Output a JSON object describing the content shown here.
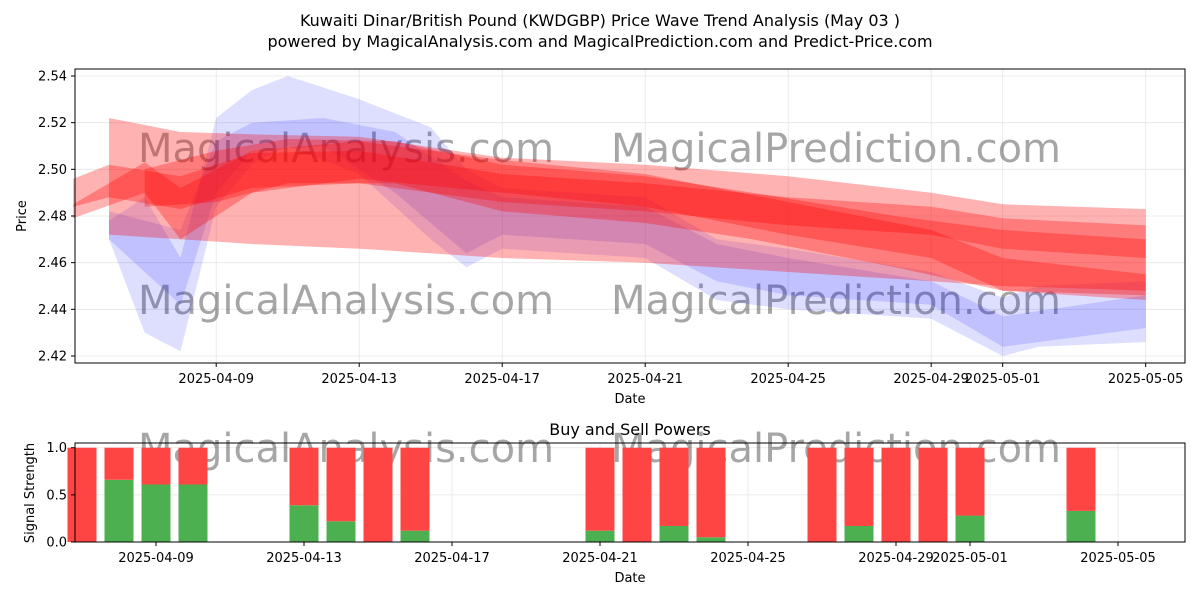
{
  "title_line1": "Kuwaiti Dinar/British Pound (KWDGBP) Price Wave Trend Analysis (May 03 )",
  "title_line2": "powered by MagicalAnalysis.com and MagicalPrediction.com and Predict-Price.com",
  "watermarks": [
    "MagicalAnalysis.com",
    "MagicalPrediction.com"
  ],
  "colors": {
    "red_band": "#ff0000",
    "blue_band": "#0000ff",
    "buy_bar": "#4caf50",
    "sell_bar": "#ff4444",
    "grid": "#e6e6e6"
  },
  "chart_data": [
    {
      "type": "area",
      "title": "",
      "xlabel": "Date",
      "ylabel": "Price",
      "x_range": [
        "2025-04-05",
        "2025-05-06"
      ],
      "ylim": [
        2.417,
        2.543
      ],
      "x_ticks": [
        "2025-04-09",
        "2025-04-13",
        "2025-04-17",
        "2025-04-21",
        "2025-04-25",
        "2025-04-29",
        "2025-05-01",
        "2025-05-05"
      ],
      "y_ticks": [
        2.42,
        2.44,
        2.46,
        2.48,
        2.5,
        2.52,
        2.54
      ],
      "grid": true,
      "series": [
        {
          "color": "#ff0000",
          "bands": [
            {
              "x": [
                "2025-04-05",
                "2025-04-06",
                "2025-04-08",
                "2025-04-10",
                "2025-04-13",
                "2025-04-17",
                "2025-04-21",
                "2025-04-25",
                "2025-04-29",
                "2025-05-01",
                "2025-05-05"
              ],
              "upper": [
                2.496,
                2.502,
                2.497,
                2.507,
                2.508,
                2.498,
                2.494,
                2.488,
                2.484,
                2.479,
                2.476
              ],
              "lower": [
                2.484,
                2.488,
                2.483,
                2.492,
                2.494,
                2.486,
                2.482,
                2.476,
                2.472,
                2.466,
                2.462
              ]
            },
            {
              "x": [
                "2025-04-06",
                "2025-04-08",
                "2025-04-10",
                "2025-04-13",
                "2025-04-17",
                "2025-04-21",
                "2025-04-25",
                "2025-04-29",
                "2025-05-01",
                "2025-05-05"
              ],
              "upper": [
                2.522,
                2.516,
                2.515,
                2.514,
                2.505,
                2.502,
                2.497,
                2.49,
                2.485,
                2.483
              ],
              "lower": [
                2.472,
                2.47,
                2.468,
                2.466,
                2.462,
                2.46,
                2.456,
                2.452,
                2.45,
                2.448
              ]
            },
            {
              "x": [
                "2025-04-05",
                "2025-04-07",
                "2025-04-08",
                "2025-04-10",
                "2025-04-13",
                "2025-04-17",
                "2025-04-21",
                "2025-04-25",
                "2025-04-29",
                "2025-05-01",
                "2025-05-05"
              ],
              "upper": [
                2.485,
                2.503,
                2.492,
                2.508,
                2.512,
                2.504,
                2.498,
                2.486,
                2.474,
                2.462,
                2.455
              ],
              "lower": [
                2.479,
                2.49,
                2.47,
                2.49,
                2.496,
                2.49,
                2.484,
                2.472,
                2.462,
                2.448,
                2.444
              ]
            },
            {
              "x": [
                "2025-04-07",
                "2025-04-09",
                "2025-04-11",
                "2025-04-14",
                "2025-04-17",
                "2025-04-21",
                "2025-04-24",
                "2025-04-28",
                "2025-05-01",
                "2025-05-05"
              ],
              "upper": [
                2.5,
                2.508,
                2.513,
                2.512,
                2.502,
                2.497,
                2.49,
                2.48,
                2.474,
                2.47
              ],
              "lower": [
                2.484,
                2.486,
                2.494,
                2.494,
                2.482,
                2.477,
                2.47,
                2.458,
                2.448,
                2.446
              ]
            }
          ]
        },
        {
          "color": "#0000ff",
          "bands": [
            {
              "x": [
                "2025-04-06",
                "2025-04-07",
                "2025-04-08",
                "2025-04-09",
                "2025-04-10",
                "2025-04-11",
                "2025-04-13",
                "2025-04-15",
                "2025-04-16",
                "2025-04-17",
                "2025-04-21",
                "2025-04-23",
                "2025-04-25",
                "2025-04-29",
                "2025-05-01",
                "2025-05-02",
                "2025-05-05"
              ],
              "upper": [
                2.478,
                2.488,
                2.462,
                2.522,
                2.534,
                2.54,
                2.53,
                2.518,
                2.5,
                2.492,
                2.488,
                2.47,
                2.466,
                2.456,
                2.445,
                2.45,
                2.452
              ],
              "lower": [
                2.47,
                2.43,
                2.422,
                2.484,
                2.502,
                2.51,
                2.498,
                2.47,
                2.458,
                2.466,
                2.462,
                2.444,
                2.44,
                2.436,
                2.42,
                2.424,
                2.426
              ]
            },
            {
              "x": [
                "2025-04-06",
                "2025-04-08",
                "2025-04-09",
                "2025-04-10",
                "2025-04-12",
                "2025-04-14",
                "2025-04-16",
                "2025-04-17",
                "2025-04-21",
                "2025-04-23",
                "2025-04-25",
                "2025-04-29",
                "2025-05-01",
                "2025-05-05"
              ],
              "upper": [
                2.482,
                2.474,
                2.512,
                2.52,
                2.522,
                2.516,
                2.495,
                2.488,
                2.484,
                2.468,
                2.462,
                2.452,
                2.437,
                2.446
              ],
              "lower": [
                2.47,
                2.442,
                2.49,
                2.508,
                2.51,
                2.49,
                2.464,
                2.472,
                2.468,
                2.452,
                2.446,
                2.442,
                2.424,
                2.432
              ]
            }
          ]
        }
      ]
    },
    {
      "type": "bar",
      "title": "Buy and Sell Powers",
      "xlabel": "Date",
      "ylabel": "Signal Strength",
      "ylim": [
        0,
        1.05
      ],
      "y_ticks": [
        0.0,
        0.5,
        1.0
      ],
      "x_ticks": [
        "2025-04-09",
        "2025-04-13",
        "2025-04-17",
        "2025-04-21",
        "2025-04-25",
        "2025-04-29",
        "2025-05-01",
        "2025-05-05"
      ],
      "grid": true,
      "categories": [
        "2025-04-07",
        "2025-04-08",
        "2025-04-09",
        "2025-04-10",
        "2025-04-13",
        "2025-04-14",
        "2025-04-15",
        "2025-04-16",
        "2025-04-21",
        "2025-04-22",
        "2025-04-23",
        "2025-04-24",
        "2025-04-27",
        "2025-04-28",
        "2025-04-29",
        "2025-04-30",
        "2025-05-01",
        "2025-05-04"
      ],
      "series": [
        {
          "values": [
            0.0,
            0.66,
            0.61,
            0.61,
            0.39,
            0.22,
            0.0,
            0.12,
            0.12,
            0.0,
            0.17,
            0.05,
            0.0,
            0.17,
            0.0,
            0.0,
            0.28,
            0.33
          ]
        },
        {
          "values": [
            1.0,
            0.34,
            0.39,
            0.39,
            0.61,
            0.78,
            1.0,
            0.88,
            0.88,
            1.0,
            0.83,
            0.95,
            1.0,
            0.83,
            1.0,
            1.0,
            0.72,
            0.67
          ]
        }
      ]
    }
  ]
}
